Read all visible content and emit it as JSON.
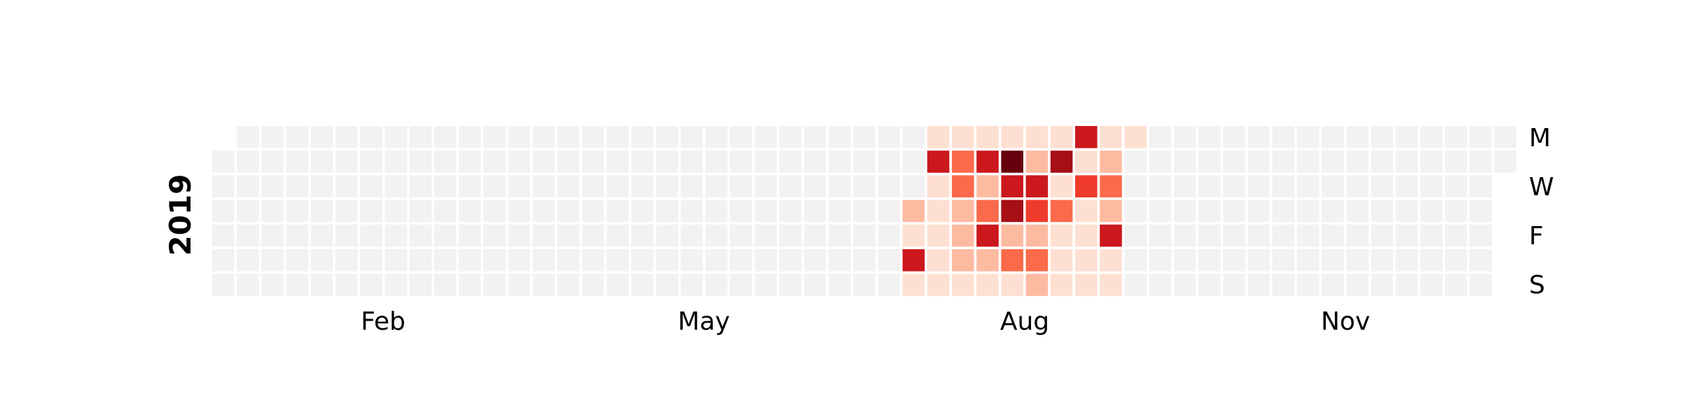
{
  "chart_data": {
    "type": "heatmap",
    "year": "2019",
    "start_weekday": "Tuesday",
    "day_labels": [
      "M",
      "W",
      "F",
      "S"
    ],
    "month_labels": [
      "Feb",
      "May",
      "Aug",
      "Nov"
    ],
    "color_scale": "Reds",
    "empty_color": "#f2f2f2",
    "grid": false,
    "legend": "none",
    "values_range": [
      0,
      10
    ],
    "active_weeks": [
      {
        "week": 28,
        "values": [
          null,
          null,
          null,
          3,
          1,
          7,
          1
        ]
      },
      {
        "week": 29,
        "values": [
          1,
          7,
          1,
          1,
          1,
          1,
          1
        ]
      },
      {
        "week": 30,
        "values": [
          1,
          5,
          5,
          2,
          2,
          2,
          1
        ]
      },
      {
        "week": 31,
        "values": [
          1,
          7,
          2,
          5,
          8,
          3,
          1
        ]
      },
      {
        "week": 32,
        "values": [
          1,
          10,
          7,
          9,
          3,
          5,
          1
        ]
      },
      {
        "week": 33,
        "values": [
          1,
          3,
          7,
          6,
          3,
          5,
          2
        ]
      },
      {
        "week": 34,
        "values": [
          1,
          9,
          1,
          5,
          1,
          1,
          1
        ]
      },
      {
        "week": 35,
        "values": [
          8,
          1,
          6,
          1,
          1,
          1,
          1
        ]
      },
      {
        "week": 36,
        "values": [
          1,
          2,
          5,
          2,
          7,
          1,
          1
        ]
      },
      {
        "week": 37,
        "values": [
          1,
          null,
          null,
          null,
          null,
          null,
          null
        ]
      }
    ]
  }
}
